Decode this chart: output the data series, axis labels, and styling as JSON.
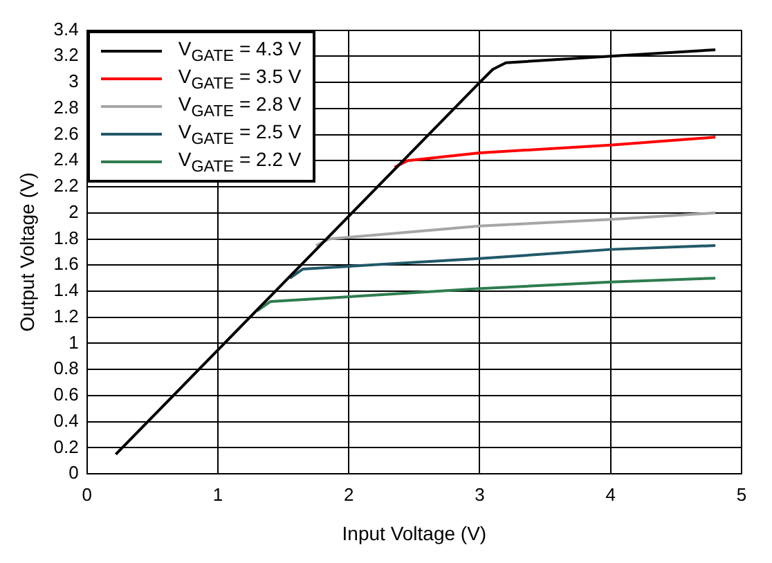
{
  "chart_data": {
    "type": "line",
    "xlabel": "Input Voltage (V)",
    "ylabel": "Output Voltage (V)",
    "xlim": [
      0,
      5
    ],
    "xticks": [
      0,
      1,
      2,
      3,
      4,
      5
    ],
    "ylim": [
      0,
      3.4
    ],
    "yticks": [
      0,
      0.2,
      0.4,
      0.6,
      0.8,
      1,
      1.2,
      1.4,
      1.6,
      1.8,
      2,
      2.2,
      2.4,
      2.6,
      2.8,
      3,
      3.2,
      3.4
    ],
    "grid": true,
    "legend": "top left",
    "marker": "none",
    "line_style": "solid",
    "series": [
      {
        "name": "V$_{GATE}$ = 4.3 V",
        "color": "#000000",
        "x": [
          0.22,
          3.0,
          3.1,
          3.2,
          4.0,
          4.8
        ],
        "values": [
          0.15,
          3.0,
          3.1,
          3.15,
          3.2,
          3.25
        ]
      },
      {
        "name": "V$_{GATE}$ = 3.5 V",
        "color": "#ff0000",
        "x": [
          2.35,
          2.45,
          3.0,
          4.0,
          4.8
        ],
        "values": [
          2.35,
          2.4,
          2.46,
          2.52,
          2.58
        ]
      },
      {
        "name": "V$_{GATE}$ = 2.8 V",
        "color": "#a6a6a6",
        "x": [
          1.75,
          1.85,
          3.0,
          4.0,
          4.8
        ],
        "values": [
          1.75,
          1.8,
          1.9,
          1.95,
          2.0
        ]
      },
      {
        "name": "V$_{GATE}$ = 2.5 V",
        "color": "#215968",
        "x": [
          1.55,
          1.65,
          3.0,
          4.0,
          4.8
        ],
        "values": [
          1.5,
          1.57,
          1.65,
          1.72,
          1.75
        ]
      },
      {
        "name": "V$_{GATE}$ = 2.2 V",
        "color": "#2e7d4f",
        "x": [
          1.3,
          1.4,
          3.0,
          4.0,
          4.8
        ],
        "values": [
          1.25,
          1.32,
          1.42,
          1.47,
          1.5
        ]
      }
    ]
  }
}
